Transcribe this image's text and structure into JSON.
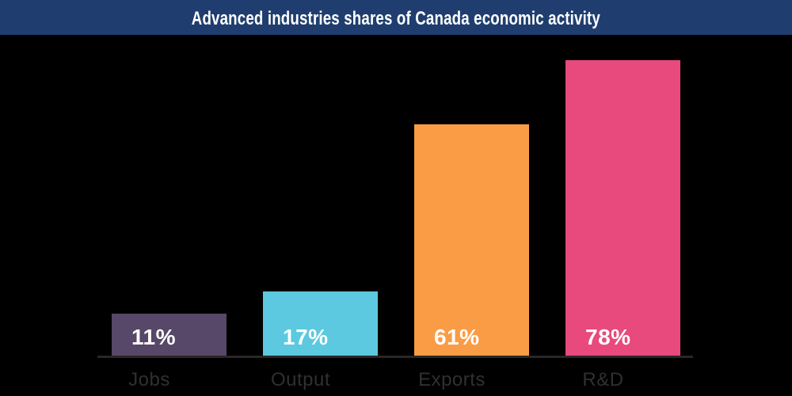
{
  "title": "Advanced industries shares of Canada economic activity",
  "colors": {
    "background": "#000000",
    "header_bg": "#1f3e6f",
    "title_text": "#ffffff",
    "axis_line": "#2b2627",
    "value_label": "#ffffff",
    "category_label": "#332f30"
  },
  "chart_data": {
    "type": "bar",
    "title": "Advanced industries shares of Canada economic activity",
    "categories": [
      "Jobs",
      "Output",
      "Exports",
      "R&D"
    ],
    "values": [
      11,
      17,
      61,
      78
    ],
    "value_labels": [
      "11%",
      "17%",
      "61%",
      "78%"
    ],
    "bar_colors": [
      "#574768",
      "#5cc9e0",
      "#fa9c45",
      "#e84a7d"
    ],
    "unit": "%",
    "ylim": [
      0,
      80
    ],
    "grid": false,
    "legend": false,
    "xlabel": "",
    "ylabel": "",
    "axes_visible": "x-baseline-only",
    "value_label_position": "inside-bottom-left",
    "category_label_position": "below-axis"
  }
}
